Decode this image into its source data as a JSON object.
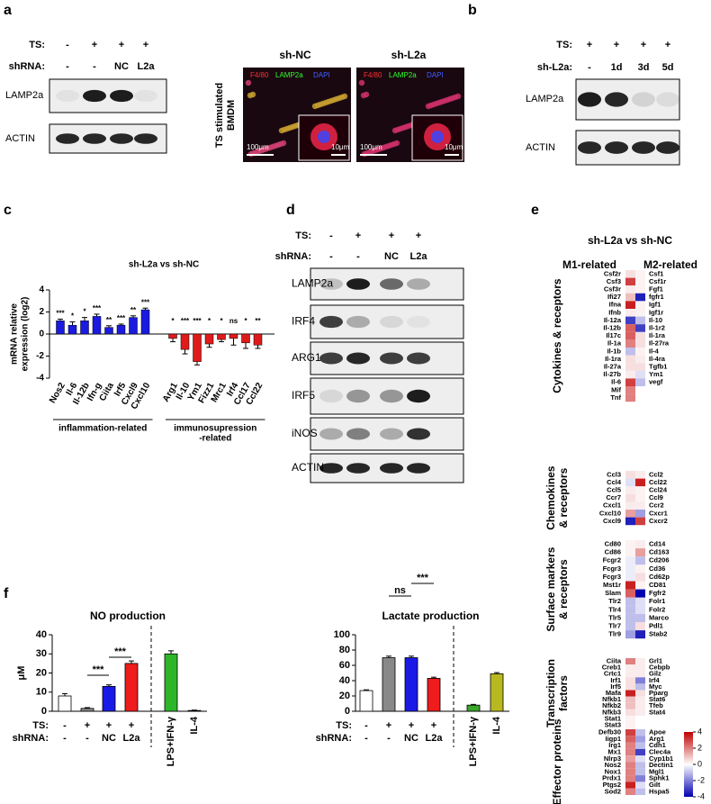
{
  "figure": {
    "a": {
      "label": "a",
      "rows": [
        {
          "label": "TS:",
          "lanes": [
            "-",
            "+",
            "+",
            "+"
          ]
        },
        {
          "label": "shRNA:",
          "lanes": [
            "-",
            "-",
            "NC",
            "L2a"
          ]
        }
      ],
      "blots": [
        "LAMP2a",
        "ACTIN"
      ],
      "images": [
        "sh-NC",
        "sh-L2a"
      ],
      "image_caption": [
        "TS stimulated",
        "BMDM"
      ],
      "stains": [
        "F4/80",
        "LAMP2a",
        "DAPI"
      ],
      "scale_bars": [
        "100μm",
        "10μm"
      ]
    },
    "b": {
      "label": "b",
      "rows": [
        {
          "label": "TS:",
          "lanes": [
            "+",
            "+",
            "+",
            "+"
          ]
        },
        {
          "label": "sh-L2a:",
          "lanes": [
            "-",
            "1d",
            "3d",
            "5d"
          ]
        }
      ],
      "blots": [
        "LAMP2a",
        "ACTIN"
      ]
    },
    "c": {
      "label": "c"
    },
    "d": {
      "label": "d",
      "rows": [
        {
          "label": "TS:",
          "lanes": [
            "-",
            "+",
            "+",
            "+"
          ]
        },
        {
          "label": "shRNA:",
          "lanes": [
            "-",
            "-",
            "NC",
            "L2a"
          ]
        }
      ],
      "blots": [
        "LAMP2a",
        "IRF4",
        "ARG1",
        "IRF5",
        "iNOS",
        "ACTIN"
      ]
    },
    "e": {
      "label": "e"
    },
    "f": {
      "label": "f"
    }
  },
  "chart_data": [
    {
      "type": "bar",
      "title": "sh-L2a vs sh-NC",
      "ylabel": [
        "mRNA relative",
        "expression (log2)"
      ],
      "ylim": [
        -4,
        4
      ],
      "yticks": [
        -4,
        -2,
        0,
        2,
        4
      ],
      "groups": [
        {
          "label": [
            "inflammation-related"
          ],
          "color": "#1a1ae0",
          "categories": [
            "Nos2",
            "Il-6",
            "Il-12b",
            "Ifn-g",
            "Ciita",
            "Irf5",
            "Cxcl9",
            "Cxcl10"
          ],
          "values": [
            1.2,
            0.8,
            1.2,
            1.6,
            0.6,
            0.8,
            1.5,
            2.2
          ],
          "errors": [
            0.15,
            0.3,
            0.3,
            0.2,
            0.15,
            0.1,
            0.15,
            0.15
          ],
          "significance": [
            "***",
            "*",
            "*",
            "***",
            "**",
            "***",
            "**",
            "***"
          ]
        },
        {
          "label": [
            "immunosupression",
            "-related"
          ],
          "color": "#e01a1a",
          "categories": [
            "Arg1",
            "Il-10",
            "Ym1",
            "Fizz1",
            "Mrc1",
            "Irf4",
            "Ccl17",
            "Ccl22"
          ],
          "values": [
            -0.4,
            -1.4,
            -2.5,
            -0.9,
            -0.5,
            -0.4,
            -0.8,
            -1.0
          ],
          "errors": [
            0.3,
            0.4,
            0.3,
            0.3,
            0.2,
            0.6,
            0.5,
            0.3
          ],
          "significance": [
            "*",
            "***",
            "***",
            "*",
            "*",
            "ns",
            "*",
            "**"
          ]
        }
      ]
    },
    {
      "type": "bar",
      "title": "NO production",
      "ylabel": "μM",
      "ylim": [
        0,
        40
      ],
      "yticks": [
        0,
        10,
        20,
        30,
        40
      ],
      "condition_rows": [
        {
          "label": "TS:",
          "lanes": [
            "-",
            "+",
            "+",
            "+"
          ]
        },
        {
          "label": "shRNA:",
          "lanes": [
            "-",
            "-",
            "NC",
            "L2a"
          ]
        }
      ],
      "categories": [
        null,
        null,
        null,
        null,
        "LPS+IFN-γ",
        "IL-4"
      ],
      "values": [
        8,
        1.5,
        13,
        25,
        30,
        0.4
      ],
      "errors": [
        1.2,
        0.4,
        0.8,
        1.3,
        1.6,
        0.2
      ],
      "colors": [
        "#ffffff",
        "#888888",
        "#1a1ae6",
        "#ee1c1c",
        "#2fb52a",
        "#333333"
      ],
      "annotations": [
        "***",
        "***"
      ]
    },
    {
      "type": "bar",
      "title": "Lactate production",
      "ylim": [
        0,
        100
      ],
      "yticks": [
        0,
        20,
        40,
        60,
        80,
        100
      ],
      "condition_rows": [
        {
          "label": "TS:",
          "lanes": [
            "-",
            "+",
            "+",
            "+"
          ]
        },
        {
          "label": "shRNA:",
          "lanes": [
            "-",
            "-",
            "NC",
            "L2a"
          ]
        }
      ],
      "categories": [
        null,
        null,
        null,
        null,
        "LPS+IFN-γ",
        "IL-4"
      ],
      "values": [
        27,
        70,
        70,
        43,
        8,
        49
      ],
      "errors": [
        1,
        2,
        2,
        1.5,
        1,
        1.5
      ],
      "colors": [
        "#ffffff",
        "#888888",
        "#1a1ae6",
        "#ee1c1c",
        "#3aa62a",
        "#b8b820"
      ],
      "annotations": [
        "ns",
        "***"
      ]
    },
    {
      "type": "heatmap",
      "title": "sh-L2a vs sh-NC",
      "columns": [
        "M1-related",
        "M2-related"
      ],
      "zlim": [
        -4,
        4
      ],
      "zticks": [
        -4,
        -2,
        0,
        2,
        4
      ],
      "groups": [
        {
          "name": [
            "Cytokines & receptors"
          ],
          "m1": {
            "genes": [
              "Csf2r",
              "Csf3",
              "Csf3r",
              "Ifi27",
              "Ifna",
              "Ifnb",
              "Il-12a",
              "Il-12b",
              "Il17c",
              "Il-1a",
              "Il-1b",
              "Il-1ra",
              "Il-27a",
              "Il-27b",
              "Il-6",
              "Mif",
              "Tnf"
            ],
            "values": [
              0.5,
              3.0,
              0.3,
              1.0,
              3.5,
              0.3,
              -3.0,
              2.5,
              2.5,
              2.0,
              -1.0,
              0.5,
              0.5,
              0.3,
              3.0,
              2.0,
              2.0
            ]
          },
          "m2": {
            "genes": [
              "Csf1",
              "Csf1r",
              "Fgf1",
              "fgfr1",
              "Igf1",
              "Igf1r",
              "Il-10",
              "Il-1r2",
              "Il-1ra",
              "Il-27ra",
              "Il-4",
              "Il-4ra",
              "Tgfb1",
              "Ym1",
              "vegf"
            ],
            "values": [
              0.2,
              0.2,
              0.2,
              -3.5,
              0.2,
              0.2,
              -1.0,
              -3.0,
              0.5,
              0.5,
              0.2,
              0.3,
              0.5,
              -0.5,
              -1.0
            ]
          }
        },
        {
          "name": [
            "Chemokines",
            "& receptors"
          ],
          "m1": {
            "genes": [
              "Ccl3",
              "Ccl4",
              "Ccl5",
              "Ccr7",
              "Cxcl1",
              "Cxcl10",
              "Cxcl9"
            ],
            "values": [
              0.5,
              -0.5,
              0.3,
              0.5,
              0.3,
              1.5,
              -3.5
            ]
          },
          "m2": {
            "genes": [
              "Ccl2",
              "Ccl22",
              "Ccl24",
              "Ccl9",
              "Ccr2",
              "Cxcr1",
              "Cxcr2"
            ],
            "values": [
              0.3,
              3.5,
              0.2,
              0.2,
              0.3,
              -1.5,
              3.0
            ]
          }
        },
        {
          "name": [
            "Surface markers",
            "& receptors"
          ],
          "m1": {
            "genes": [
              "Cd80",
              "Cd86",
              "Fcgr2",
              "Fcgr3",
              "Fcgr3",
              "Mst1r",
              "Slam",
              "Tlr2",
              "Tlr4",
              "Tlr5",
              "Tlr7",
              "Tlr9"
            ],
            "values": [
              0.2,
              0.2,
              -0.3,
              -0.3,
              -0.3,
              3.5,
              2.5,
              -1.0,
              -1.0,
              -1.0,
              -1.0,
              -1.5
            ]
          },
          "m2": {
            "genes": [
              "Cd14",
              "Cd163",
              "Cd206",
              "Cd36",
              "Cd62p",
              "CD81",
              "Fgfr2",
              "Folr1",
              "Folr2",
              "Marco",
              "Pdl1",
              "Stab2"
            ],
            "values": [
              0.3,
              1.5,
              -1.0,
              0.2,
              0.5,
              0.2,
              -4.0,
              -0.5,
              -0.5,
              -1.0,
              0.5,
              -3.5
            ]
          }
        },
        {
          "name": [
            "Transcription",
            "factors"
          ],
          "m1": {
            "genes": [
              "Ciita",
              "Creb1",
              "Crtc1",
              "Irf1",
              "Irf5",
              "Mafa",
              "Nfkb1",
              "Nfkb2",
              "Nfkb3",
              "Stat1",
              "Stat3"
            ],
            "values": [
              2.0,
              0.3,
              0.3,
              0.5,
              0.5,
              3.5,
              1.0,
              1.0,
              0.5,
              0.2,
              0.2
            ]
          },
          "m2": {
            "genes": [
              "Grl1",
              "Cebpb",
              "Gilz",
              "Irf4",
              "Myc",
              "Pparg",
              "Stat6",
              "Tfeb",
              "Stat4"
            ],
            "values": [
              0.3,
              0.3,
              0.3,
              -2.0,
              -1.0,
              0.5,
              0.3,
              0.3,
              0.3
            ]
          }
        },
        {
          "name": [
            "Effector proteins"
          ],
          "m1": {
            "genes": [
              "Defb30",
              "Iigp1",
              "Irg1",
              "Mx1",
              "Nlrp3",
              "Nos2",
              "Nox1",
              "Prdx1",
              "Ptgs2",
              "Sod2"
            ],
            "values": [
              3.0,
              2.5,
              2.0,
              2.0,
              1.5,
              2.0,
              2.0,
              2.0,
              3.5,
              2.0
            ]
          },
          "m2": {
            "genes": [
              "Apoe",
              "Arg1",
              "Cdh1",
              "Clec4a",
              "Cyp1b1",
              "Dectin1",
              "Mgl1",
              "Sphk1",
              "Gilt",
              "Hspa5"
            ],
            "values": [
              -1.0,
              -1.5,
              -1.0,
              -3.0,
              -0.5,
              -1.0,
              -1.0,
              -2.0,
              -0.5,
              -1.0
            ]
          }
        }
      ]
    }
  ]
}
